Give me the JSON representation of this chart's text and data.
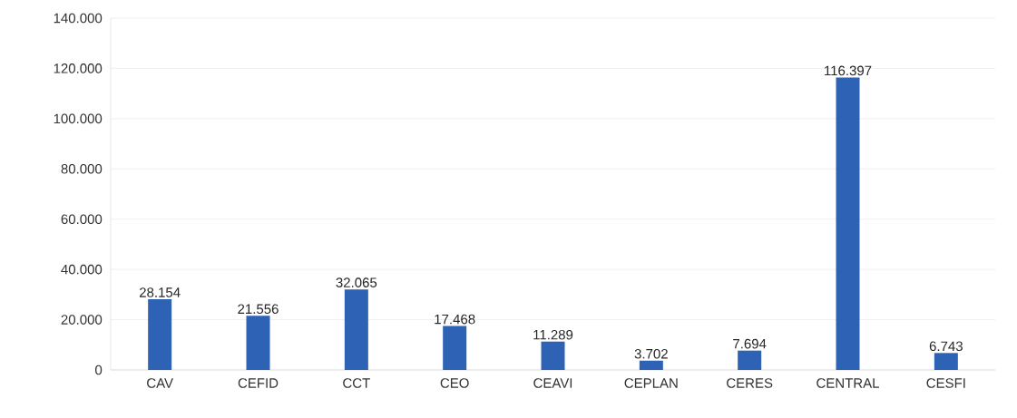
{
  "chart_data": {
    "type": "bar",
    "categories": [
      "CAV",
      "CEFID",
      "CCT",
      "CEO",
      "CEAVI",
      "CEPLAN",
      "CERES",
      "CENTRAL",
      "CESFI"
    ],
    "values": [
      28154,
      21556,
      32065,
      17468,
      11289,
      3702,
      7694,
      116397,
      6743
    ],
    "value_labels": [
      "28.154",
      "21.556",
      "32.065",
      "17.468",
      "11.289",
      "3.702",
      "7.694",
      "116.397",
      "6.743"
    ],
    "color": "#2e62b5",
    "ylim": [
      0,
      140000
    ],
    "yticks": [
      0,
      {
        "value": 20000,
        "label": "20.000"
      },
      {
        "value": 40000,
        "label": "40.000"
      },
      {
        "value": 60000,
        "label": "60.000"
      },
      {
        "value": 80000,
        "label": "80.000"
      },
      {
        "value": 100000,
        "label": "100.000"
      },
      {
        "value": 120000,
        "label": "120.000"
      },
      {
        "value": 140000,
        "label": "140.000"
      }
    ],
    "grid": "y"
  }
}
